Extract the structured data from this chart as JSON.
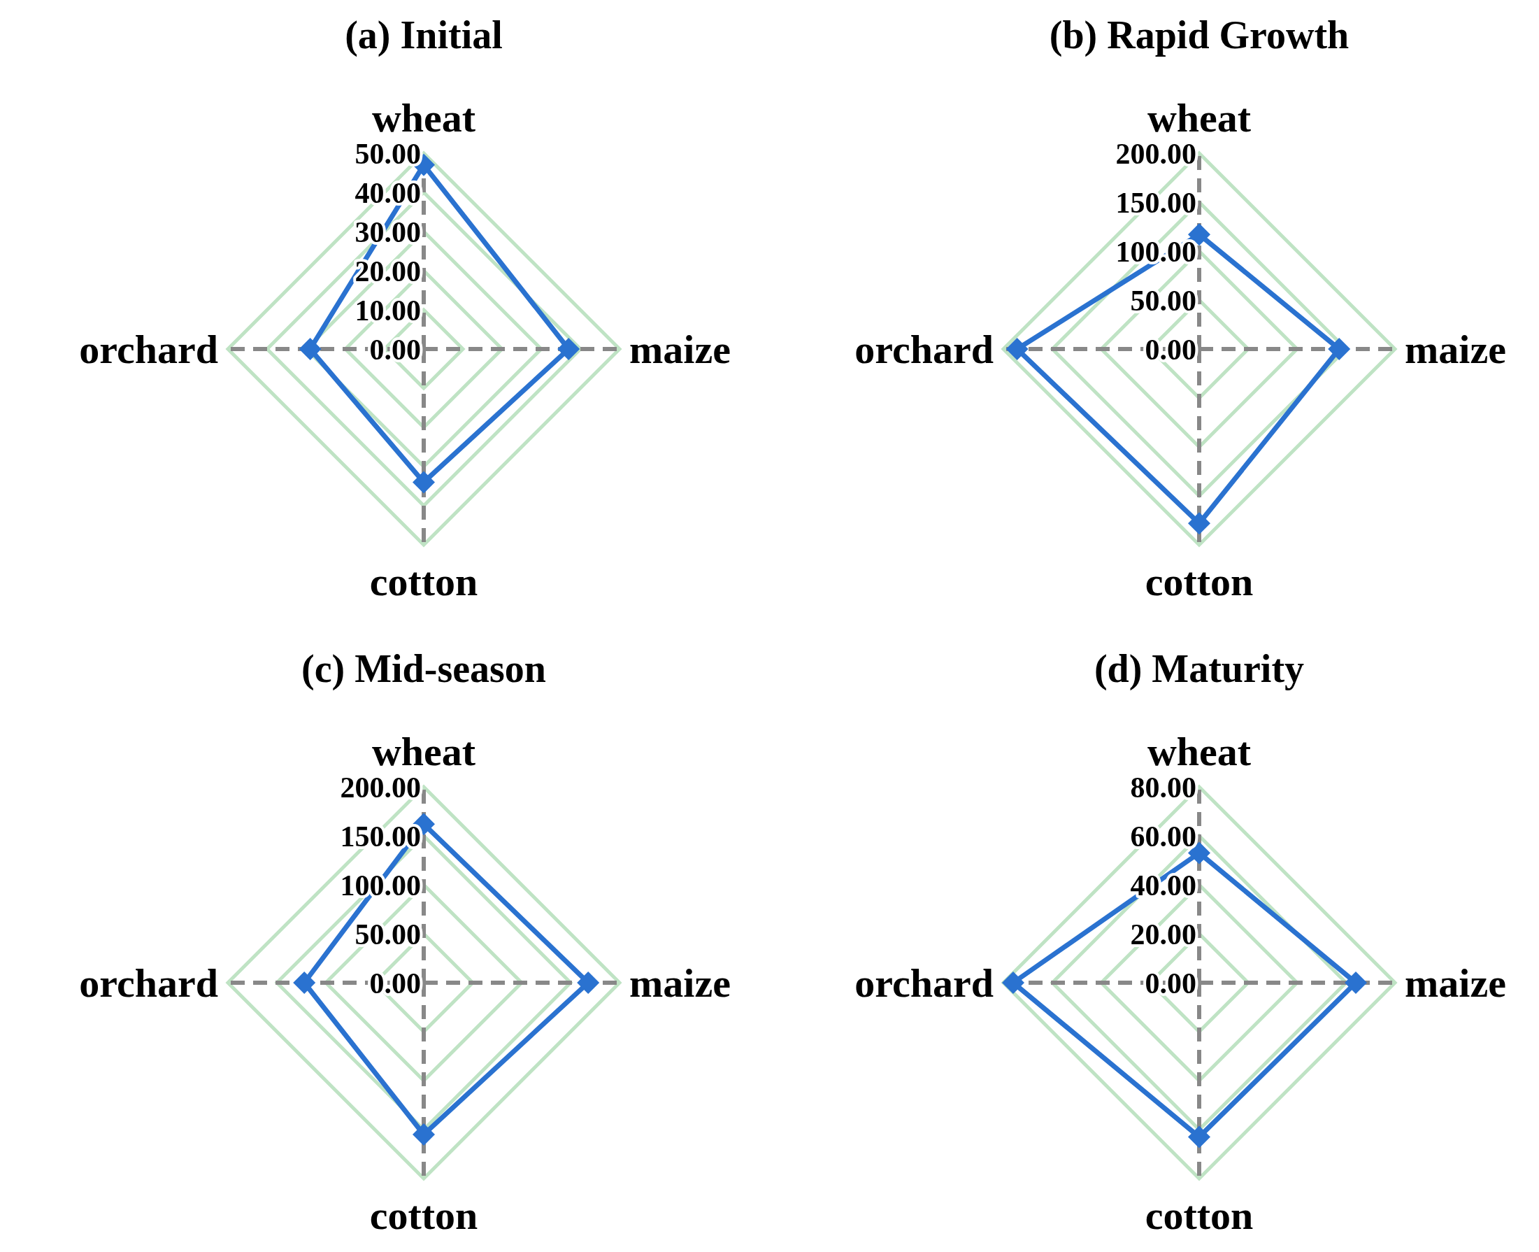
{
  "chart_data": [
    {
      "type": "radar",
      "title": "(a) Initial",
      "categories": [
        "wheat",
        "maize",
        "cotton",
        "orchard"
      ],
      "series": [
        {
          "color": "#2a72d0",
          "values": [
            47,
            37,
            34,
            29
          ]
        }
      ],
      "ylim": [
        0,
        50
      ],
      "yticks": [
        {
          "value": 0,
          "label": "0.00"
        },
        {
          "value": 10,
          "label": "10.00"
        },
        {
          "value": 20,
          "label": "20.00"
        },
        {
          "value": 30,
          "label": "30.00"
        },
        {
          "value": 40,
          "label": "40.00"
        },
        {
          "value": 50,
          "label": "50.00"
        }
      ],
      "grid": true,
      "marker": "diamond",
      "line_style": "solid"
    },
    {
      "type": "radar",
      "title": "(b) Rapid Growth",
      "categories": [
        "wheat",
        "maize",
        "cotton",
        "orchard"
      ],
      "series": [
        {
          "color": "#2a72d0",
          "values": [
            117,
            143,
            178,
            186
          ]
        }
      ],
      "ylim": [
        0,
        200
      ],
      "yticks": [
        {
          "value": 0,
          "label": "0.00"
        },
        {
          "value": 50,
          "label": "50.00"
        },
        {
          "value": 100,
          "label": "100.00"
        },
        {
          "value": 150,
          "label": "150.00"
        },
        {
          "value": 200,
          "label": "200.00"
        }
      ],
      "grid": true,
      "marker": "diamond",
      "line_style": "solid"
    },
    {
      "type": "radar",
      "title": "(c) Mid-season",
      "categories": [
        "wheat",
        "maize",
        "cotton",
        "orchard"
      ],
      "series": [
        {
          "color": "#2a72d0",
          "values": [
            162,
            168,
            155,
            122
          ]
        }
      ],
      "ylim": [
        0,
        200
      ],
      "yticks": [
        {
          "value": 0,
          "label": "0.00"
        },
        {
          "value": 50,
          "label": "50.00"
        },
        {
          "value": 100,
          "label": "100.00"
        },
        {
          "value": 150,
          "label": "150.00"
        },
        {
          "value": 200,
          "label": "200.00"
        }
      ],
      "grid": true,
      "marker": "diamond",
      "line_style": "solid"
    },
    {
      "type": "radar",
      "title": "(d) Maturity",
      "categories": [
        "wheat",
        "maize",
        "cotton",
        "orchard"
      ],
      "series": [
        {
          "color": "#2a72d0",
          "values": [
            53,
            64,
            63,
            76
          ]
        }
      ],
      "ylim": [
        0,
        80
      ],
      "yticks": [
        {
          "value": 0,
          "label": "0.00"
        },
        {
          "value": 20,
          "label": "20.00"
        },
        {
          "value": 40,
          "label": "40.00"
        },
        {
          "value": 60,
          "label": "60.00"
        },
        {
          "value": 80,
          "label": "80.00"
        }
      ],
      "grid": true,
      "marker": "diamond",
      "line_style": "solid"
    }
  ]
}
